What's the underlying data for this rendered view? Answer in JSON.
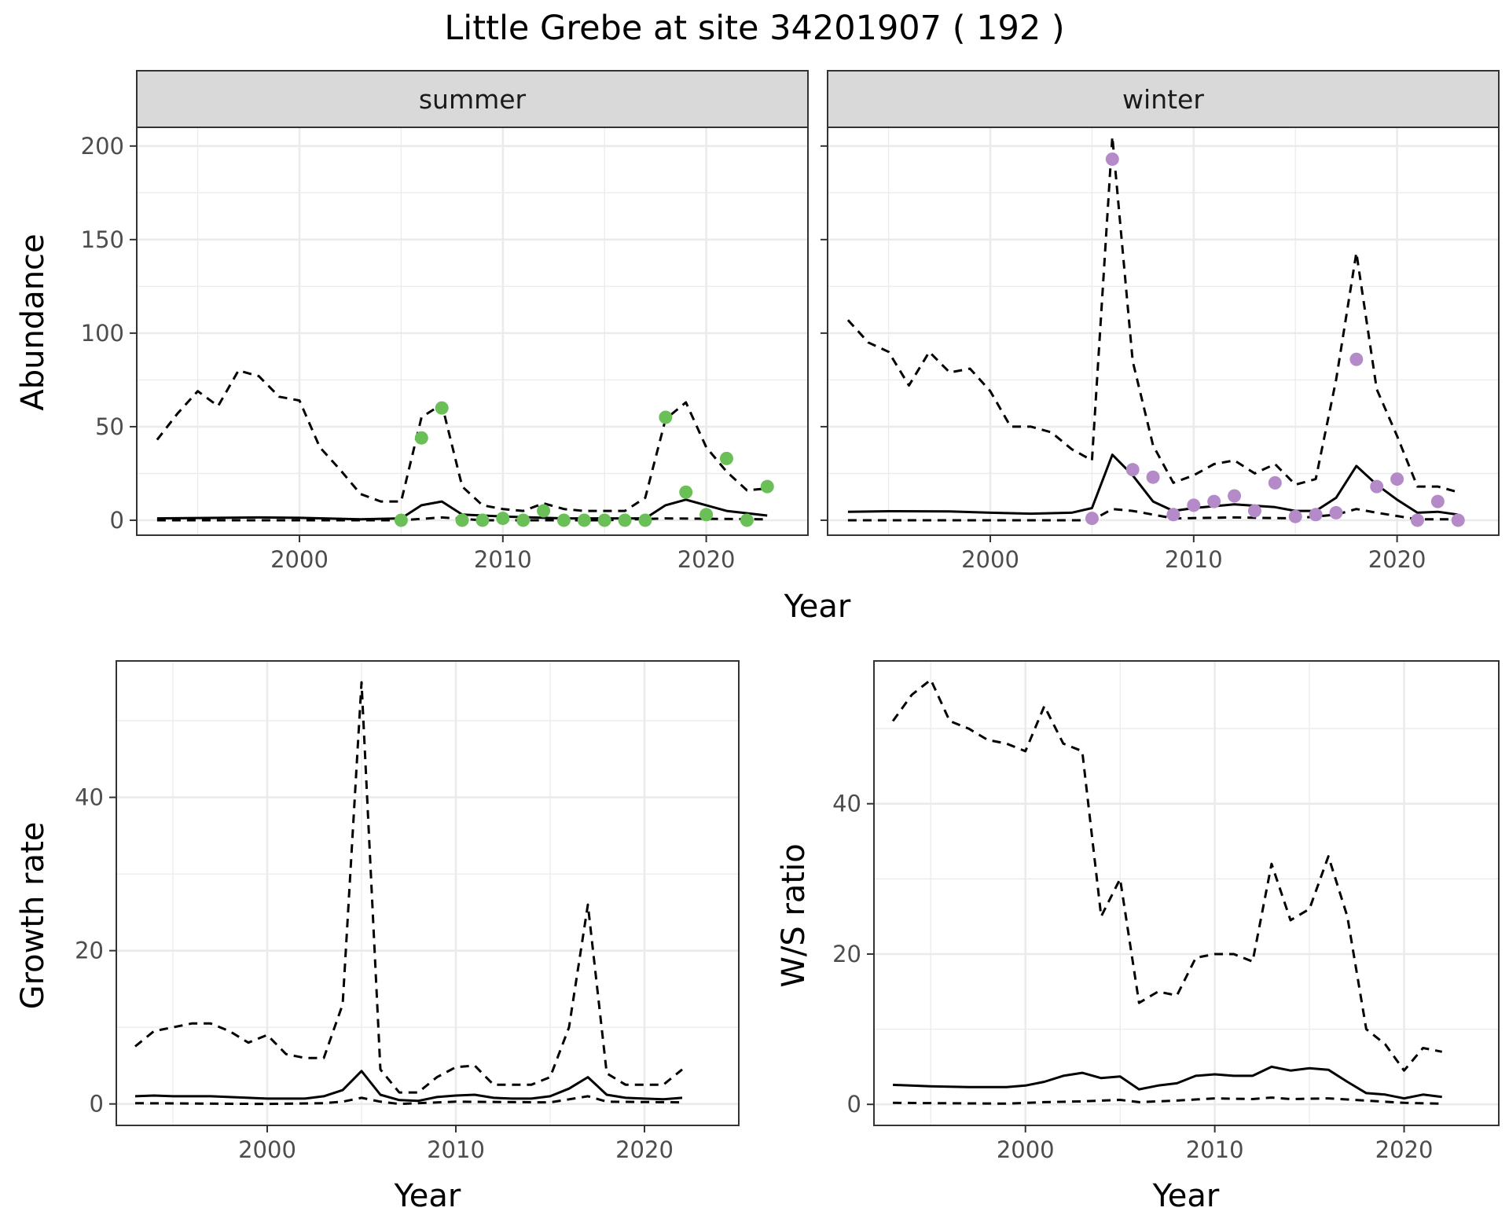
{
  "title": "Little Grebe at site 34201907 ( 192 )",
  "colors": {
    "summer_points": "#6abf56",
    "winter_points": "#b48bc8",
    "line": "#000000",
    "strip_bg": "#d9d9d9",
    "grid": "#ebebeb"
  },
  "chart_data": [
    {
      "type": "line",
      "panel": "summer",
      "strip_label": "summer",
      "xlabel": "Year",
      "ylabel": "Abundance",
      "xlim": [
        1992,
        2025
      ],
      "ylim": [
        -8,
        210
      ],
      "x_ticks": [
        2000,
        2010,
        2020
      ],
      "y_ticks": [
        0,
        50,
        100,
        150,
        200
      ],
      "point_color": "#6abf56",
      "points": {
        "x": [
          2005,
          2006,
          2007,
          2008,
          2009,
          2010,
          2011,
          2012,
          2013,
          2014,
          2015,
          2016,
          2017,
          2018,
          2019,
          2020,
          2021,
          2022,
          2023
        ],
        "y": [
          0,
          44,
          60,
          0,
          0,
          1,
          0,
          5,
          0,
          0,
          0,
          0,
          0,
          55,
          15,
          3,
          33,
          0,
          18
        ]
      },
      "estimate": {
        "x": [
          1993,
          1995,
          1998,
          2000,
          2003,
          2005,
          2006,
          2007,
          2008,
          2010,
          2013,
          2017,
          2018,
          2019,
          2020,
          2021,
          2023
        ],
        "y": [
          1,
          1.2,
          1.5,
          1.3,
          0.5,
          1,
          8,
          10,
          3,
          2,
          1,
          1,
          8,
          11,
          8,
          5,
          2.5
        ]
      },
      "upper": {
        "x": [
          1993,
          1994,
          1995,
          1996,
          1997,
          1998,
          1999,
          2000,
          2001,
          2002,
          2003,
          2004,
          2005,
          2006,
          2007,
          2008,
          2009,
          2010,
          2011,
          2012,
          2013,
          2014,
          2015,
          2016,
          2017,
          2018,
          2019,
          2020,
          2021,
          2022,
          2023
        ],
        "y": [
          43,
          57,
          69,
          61,
          80,
          77,
          66,
          64,
          39,
          27,
          14,
          10,
          10,
          55,
          62,
          18,
          8,
          6,
          5,
          9,
          6,
          5,
          5,
          5,
          12,
          54,
          63,
          39,
          26,
          16,
          17
        ]
      },
      "lower": {
        "x": [
          1993,
          2005,
          2007,
          2009,
          2015,
          2018,
          2023
        ],
        "y": [
          0,
          0,
          1.5,
          0,
          0,
          1,
          0.5
        ]
      }
    },
    {
      "type": "line",
      "panel": "winter",
      "strip_label": "winter",
      "xlabel": "Year",
      "ylabel": "",
      "xlim": [
        1992,
        2025
      ],
      "ylim": [
        -8,
        210
      ],
      "x_ticks": [
        2000,
        2010,
        2020
      ],
      "y_ticks": [
        0,
        50,
        100,
        150,
        200
      ],
      "point_color": "#b48bc8",
      "points": {
        "x": [
          2005,
          2006,
          2007,
          2008,
          2009,
          2010,
          2011,
          2012,
          2013,
          2014,
          2015,
          2016,
          2017,
          2018,
          2019,
          2020,
          2021,
          2022,
          2023
        ],
        "y": [
          1,
          193,
          27,
          23,
          3,
          8,
          10,
          13,
          5,
          20,
          2,
          3,
          4,
          86,
          18,
          22,
          0,
          10,
          0
        ]
      },
      "estimate": {
        "x": [
          1993,
          1995,
          1998,
          2000,
          2002,
          2004,
          2005,
          2006,
          2007,
          2008,
          2009,
          2010,
          2012,
          2014,
          2015,
          2016,
          2017,
          2018,
          2019,
          2020,
          2021,
          2022,
          2023
        ],
        "y": [
          4.5,
          4.8,
          4.7,
          4,
          3.5,
          4,
          6.5,
          35,
          24,
          10,
          5,
          6.5,
          8.5,
          7,
          5,
          5,
          12,
          29,
          19,
          11,
          4,
          4.5,
          3
        ]
      },
      "upper": {
        "x": [
          1993,
          1994,
          1995,
          1996,
          1997,
          1998,
          1999,
          2000,
          2001,
          2002,
          2003,
          2004,
          2005,
          2006,
          2007,
          2008,
          2009,
          2010,
          2011,
          2012,
          2013,
          2014,
          2015,
          2016,
          2017,
          2018,
          2019,
          2020,
          2021,
          2022,
          2023
        ],
        "y": [
          107,
          95,
          90,
          72,
          90,
          79,
          81,
          69,
          50,
          50,
          47,
          38,
          32,
          205,
          85,
          40,
          20,
          24,
          30,
          32,
          25,
          30,
          19,
          22,
          75,
          143,
          70,
          45,
          18,
          18,
          15
        ]
      },
      "lower": {
        "x": [
          1993,
          2005,
          2006,
          2007,
          2008,
          2009,
          2012,
          2015,
          2017,
          2018,
          2019,
          2021,
          2023
        ],
        "y": [
          0,
          0,
          6,
          5,
          3,
          1,
          1.5,
          1,
          3,
          6,
          4,
          0.5,
          0.5
        ]
      }
    },
    {
      "type": "line",
      "panel": "growth",
      "xlabel": "Year",
      "ylabel": "Growth rate",
      "xlim": [
        1992,
        2025
      ],
      "ylim": [
        -2.8,
        57.8
      ],
      "x_ticks": [
        2000,
        2010,
        2020
      ],
      "y_ticks": [
        0,
        20,
        40
      ],
      "estimate": {
        "x": [
          1993,
          1994,
          1995,
          1996,
          1997,
          1998,
          1999,
          2000,
          2001,
          2002,
          2003,
          2004,
          2005,
          2006,
          2007,
          2008,
          2009,
          2010,
          2011,
          2012,
          2013,
          2014,
          2015,
          2016,
          2017,
          2018,
          2019,
          2020,
          2021,
          2022
        ],
        "y": [
          1,
          1.1,
          1,
          1,
          1,
          0.9,
          0.8,
          0.7,
          0.7,
          0.7,
          1,
          1.8,
          4.3,
          1.2,
          0.5,
          0.4,
          0.9,
          1.1,
          1.2,
          0.8,
          0.7,
          0.7,
          1,
          2,
          3.5,
          1.2,
          0.8,
          0.7,
          0.6,
          0.8
        ]
      },
      "upper": {
        "x": [
          1993,
          1994,
          1995,
          1996,
          1997,
          1998,
          1999,
          2000,
          2001,
          2002,
          2003,
          2004,
          2005,
          2006,
          2007,
          2008,
          2009,
          2010,
          2011,
          2012,
          2013,
          2014,
          2015,
          2016,
          2017,
          2018,
          2019,
          2020,
          2021,
          2022
        ],
        "y": [
          7.5,
          9.5,
          10,
          10.5,
          10.5,
          9.5,
          8,
          9,
          6.5,
          6,
          6,
          13,
          55,
          4.5,
          1.5,
          1.5,
          3.5,
          4.8,
          5,
          2.5,
          2.5,
          2.5,
          3.5,
          10,
          26,
          4,
          2.5,
          2.5,
          2.5,
          4.5
        ]
      },
      "lower": {
        "x": [
          1993,
          2000,
          2003,
          2004,
          2005,
          2006,
          2007,
          2008,
          2010,
          2015,
          2016,
          2017,
          2018,
          2022
        ],
        "y": [
          0.1,
          0,
          0.1,
          0.3,
          0.8,
          0.3,
          0,
          0.1,
          0.3,
          0.2,
          0.6,
          1,
          0.3,
          0.2
        ]
      }
    },
    {
      "type": "line",
      "panel": "ws_ratio",
      "xlabel": "Year",
      "ylabel": "W/S ratio",
      "xlim": [
        1992,
        2025
      ],
      "ylim": [
        -2.8,
        59
      ],
      "x_ticks": [
        2000,
        2010,
        2020
      ],
      "y_ticks": [
        0,
        20,
        40
      ],
      "estimate": {
        "x": [
          1993,
          1995,
          1997,
          1999,
          2000,
          2001,
          2002,
          2003,
          2004,
          2005,
          2006,
          2007,
          2008,
          2009,
          2010,
          2011,
          2012,
          2013,
          2014,
          2015,
          2016,
          2017,
          2018,
          2019,
          2020,
          2021,
          2022
        ],
        "y": [
          2.6,
          2.4,
          2.3,
          2.3,
          2.5,
          3,
          3.8,
          4.2,
          3.5,
          3.7,
          2,
          2.5,
          2.8,
          3.8,
          4,
          3.8,
          3.8,
          5,
          4.5,
          4.8,
          4.6,
          3,
          1.5,
          1.3,
          0.8,
          1.3,
          1
        ]
      },
      "upper": {
        "x": [
          1993,
          1994,
          1995,
          1996,
          1997,
          1998,
          1999,
          2000,
          2001,
          2002,
          2003,
          2004,
          2005,
          2006,
          2007,
          2008,
          2009,
          2010,
          2011,
          2012,
          2013,
          2014,
          2015,
          2016,
          2017,
          2018,
          2019,
          2020,
          2021,
          2022
        ],
        "y": [
          51,
          54.5,
          56.5,
          51,
          50,
          48.5,
          48,
          47,
          53,
          48,
          47,
          25,
          30,
          13.5,
          15,
          14.5,
          19.5,
          20,
          20,
          19,
          32,
          24.5,
          26,
          33,
          25,
          10,
          8,
          4.5,
          7.5,
          7
        ]
      },
      "lower": {
        "x": [
          1993,
          1999,
          2001,
          2003,
          2005,
          2006,
          2008,
          2010,
          2012,
          2013,
          2014,
          2016,
          2018,
          2020,
          2022
        ],
        "y": [
          0.2,
          0.1,
          0.3,
          0.4,
          0.6,
          0.3,
          0.5,
          0.8,
          0.7,
          0.9,
          0.7,
          0.8,
          0.5,
          0.2,
          0.1
        ]
      }
    }
  ]
}
